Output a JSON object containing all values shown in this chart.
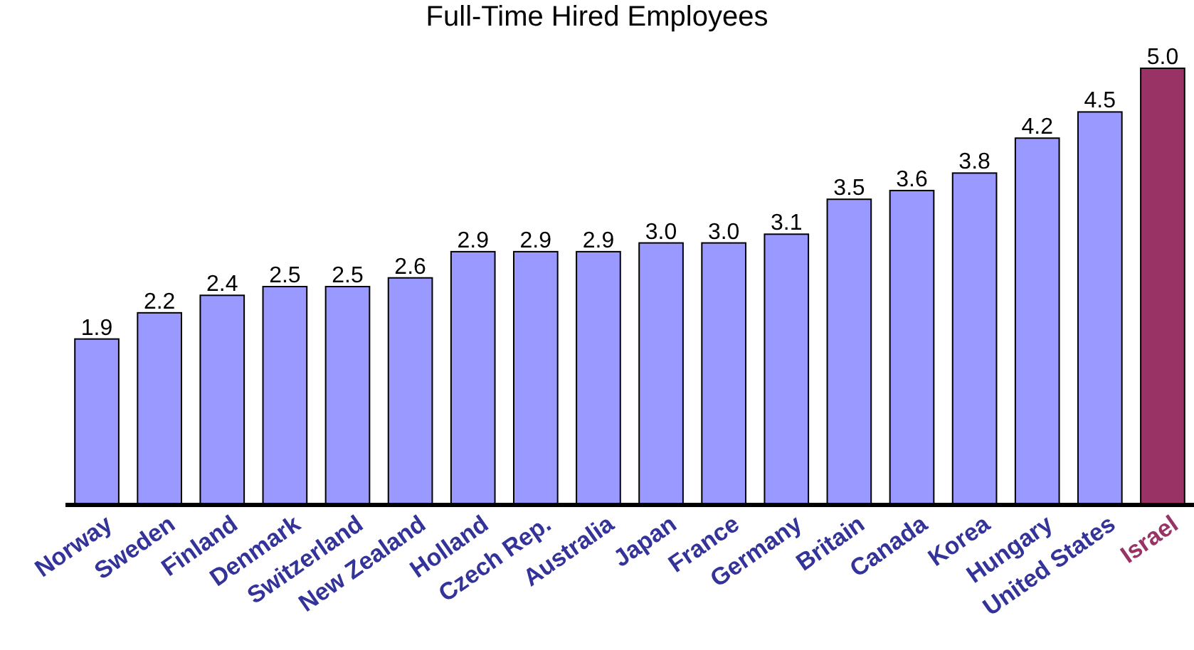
{
  "chart_data": {
    "type": "bar",
    "title": "Full-Time Hired Employees",
    "categories": [
      "Norway",
      "Sweden",
      "Finland",
      "Denmark",
      "Switzerland",
      "New Zealand",
      "Holland",
      "Czech Rep.",
      "Australia",
      "Japan",
      "France",
      "Germany",
      "Britain",
      "Canada",
      "Korea",
      "Hungary",
      "United States",
      "Israel"
    ],
    "values": [
      1.9,
      2.2,
      2.4,
      2.5,
      2.5,
      2.6,
      2.9,
      2.9,
      2.9,
      3.0,
      3.0,
      3.1,
      3.5,
      3.6,
      3.8,
      4.2,
      4.5,
      5.0
    ],
    "colors": [
      "#9999ff",
      "#9999ff",
      "#9999ff",
      "#9999ff",
      "#9999ff",
      "#9999ff",
      "#9999ff",
      "#9999ff",
      "#9999ff",
      "#9999ff",
      "#9999ff",
      "#9999ff",
      "#9999ff",
      "#9999ff",
      "#9999ff",
      "#9999ff",
      "#9999ff",
      "#993366"
    ],
    "value_labels": [
      "1.9",
      "2.2",
      "2.4",
      "2.5",
      "2.5",
      "2.6",
      "2.9",
      "2.9",
      "2.9",
      "3.0",
      "3.0",
      "3.1",
      "3.5",
      "3.6",
      "3.8",
      "4.2",
      "4.5",
      "5.0"
    ]
  }
}
